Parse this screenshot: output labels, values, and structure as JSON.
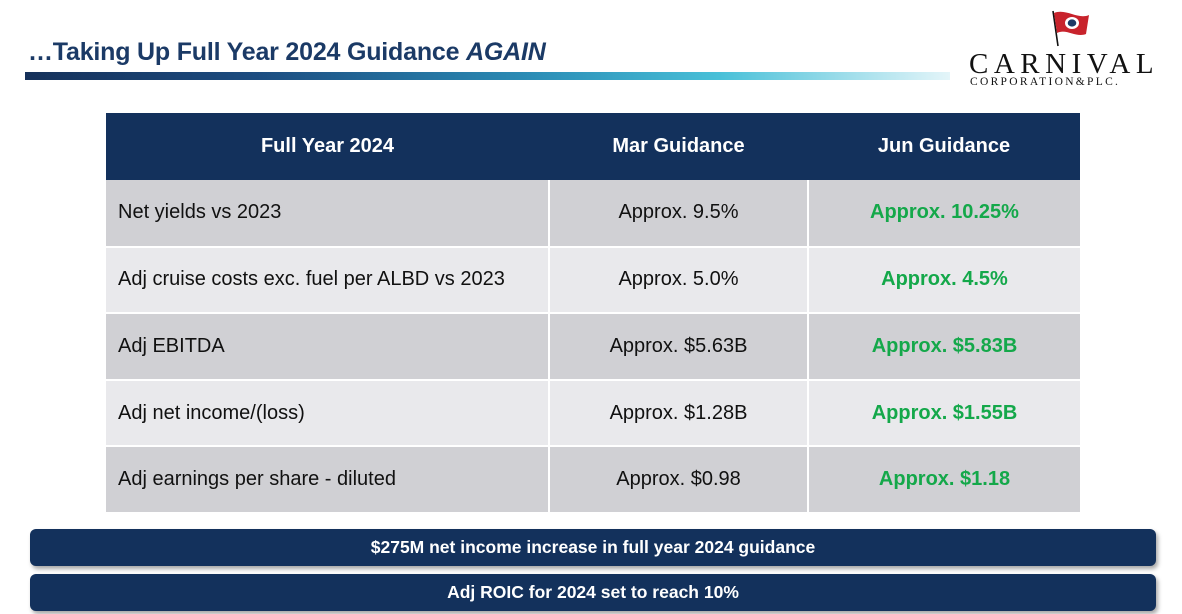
{
  "slide": {
    "title_main": "…Taking Up Full Year 2024 Guidance ",
    "title_emphasis": "AGAIN"
  },
  "logo": {
    "wordmark": "CARNIVAL",
    "subline": "CORPORATION&PLC.",
    "icon": "ship-flag-icon"
  },
  "table": {
    "headers": [
      "Full Year 2024",
      "Mar Guidance",
      "Jun Guidance"
    ],
    "rows": [
      {
        "metric": "Net yields vs 2023",
        "mar": "Approx. 9.5%",
        "jun": "Approx. 10.25%"
      },
      {
        "metric": "Adj cruise costs exc. fuel per ALBD vs 2023",
        "mar": "Approx. 5.0%",
        "jun": "Approx. 4.5%"
      },
      {
        "metric": "Adj EBITDA",
        "mar": "Approx. $5.63B",
        "jun": "Approx. $5.83B"
      },
      {
        "metric": "Adj net income/(loss)",
        "mar": "Approx. $1.28B",
        "jun": "Approx. $1.55B"
      },
      {
        "metric": "Adj earnings per share - diluted",
        "mar": "Approx. $0.98",
        "jun": "Approx. $1.18"
      }
    ]
  },
  "banners": [
    "$275M net income increase in full year 2024 guidance",
    "Adj ROIC for 2024 set to reach 10%"
  ],
  "colors": {
    "navy": "#13315c",
    "title": "#1b3a66",
    "green": "#14a84a",
    "flag_red": "#c8232c",
    "row_dark": "#d0d0d4",
    "row_light": "#e9e9ec"
  }
}
